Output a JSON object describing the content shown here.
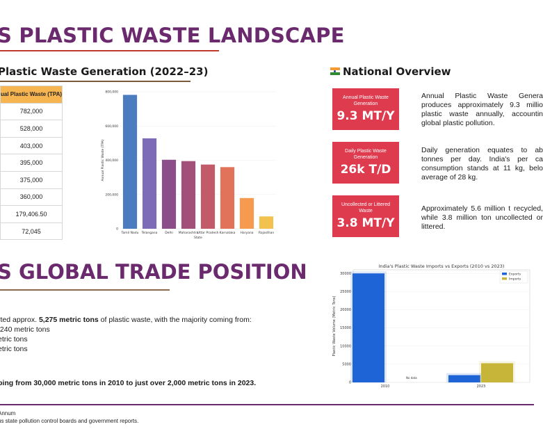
{
  "title": "S PLASTIC WASTE LANDSCAPE",
  "generation": {
    "heading": "Plastic Waste Generation (2022–23)",
    "table_header": "ual Plastic Waste (TPA)",
    "table_rows": [
      "782,000",
      "528,000",
      "403,000",
      "395,000",
      "375,000",
      "360,000",
      "179,406.50",
      "72,045"
    ]
  },
  "chart_data": [
    {
      "type": "bar",
      "categories": [
        "Tamil Nadu",
        "Telangana",
        "Delhi",
        "Maharashtra",
        "Uttar Pradesh",
        "Karnataka",
        "Haryana",
        "Rajasthan"
      ],
      "values": [
        782000,
        528000,
        403000,
        395000,
        375000,
        360000,
        179406.5,
        72045
      ],
      "colors": [
        "#4a7cbf",
        "#7d6bb8",
        "#8b4e8b",
        "#a24f7a",
        "#c25a6a",
        "#e0735a",
        "#f59a4f",
        "#f2c14e"
      ],
      "ylabel": "Annual Plastic Waste (TPA)",
      "xlabel": "State",
      "ylim": [
        0,
        800000
      ],
      "yticks": [
        "0",
        "200,000",
        "400,000",
        "600,000",
        "800,000"
      ]
    },
    {
      "type": "bar",
      "title": "India's Plastic Waste Imports vs Exports (2010 vs 2023)",
      "categories": [
        "2010",
        "2023"
      ],
      "series": [
        {
          "name": "Exports",
          "values": [
            30000,
            2000
          ],
          "color": "#1f64d6"
        },
        {
          "name": "Imports",
          "values": [
            null,
            5275
          ],
          "color": "#c7b53a"
        }
      ],
      "ylabel": "Plastic Waste Volume (Metric Tons)",
      "ylim": [
        0,
        31000
      ],
      "yticks": [
        "0",
        "5000",
        "10000",
        "15000",
        "20000",
        "25000",
        "30000"
      ],
      "annotation": "No data",
      "legend": "top-right"
    }
  ],
  "overview": {
    "heading": "National Overview",
    "stats": [
      {
        "label": "Annual Plastic Waste Generation",
        "value": "9.3 MT/Y",
        "text": "Annual Plastic Waste Genera produces approximately 9.3 millio plastic waste annually, accountin global plastic pollution."
      },
      {
        "label": "Daily Plastic Waste Generation",
        "value": "26k T/D",
        "text": "Daily generation equates to ab tonnes per day. India's per ca consumption stands at 11 kg, belo average of 28 kg."
      },
      {
        "label": "Uncollected or Littered Waste",
        "value": "3.8 MT/Y",
        "text": "Approximately 5.6 million t recycled, while 3.8 million ton uncollected or littered."
      }
    ]
  },
  "trade": {
    "title": "S GLOBAL TRADE POSITION",
    "line1_pre": "rted approx. ",
    "line1_bold": "5,275 metric tons",
    "line1_post": " of plastic waste, with the majority coming from:",
    "line2": ",240 metric tons",
    "line3": "etric tons",
    "line4": "etric tons",
    "line5": "ping from 30,000 metric tons in 2010 to just over 2,000 metric tons in 2023."
  },
  "footer": {
    "line1": "Annum",
    "line2": "us state pollution control boards and government reports."
  }
}
